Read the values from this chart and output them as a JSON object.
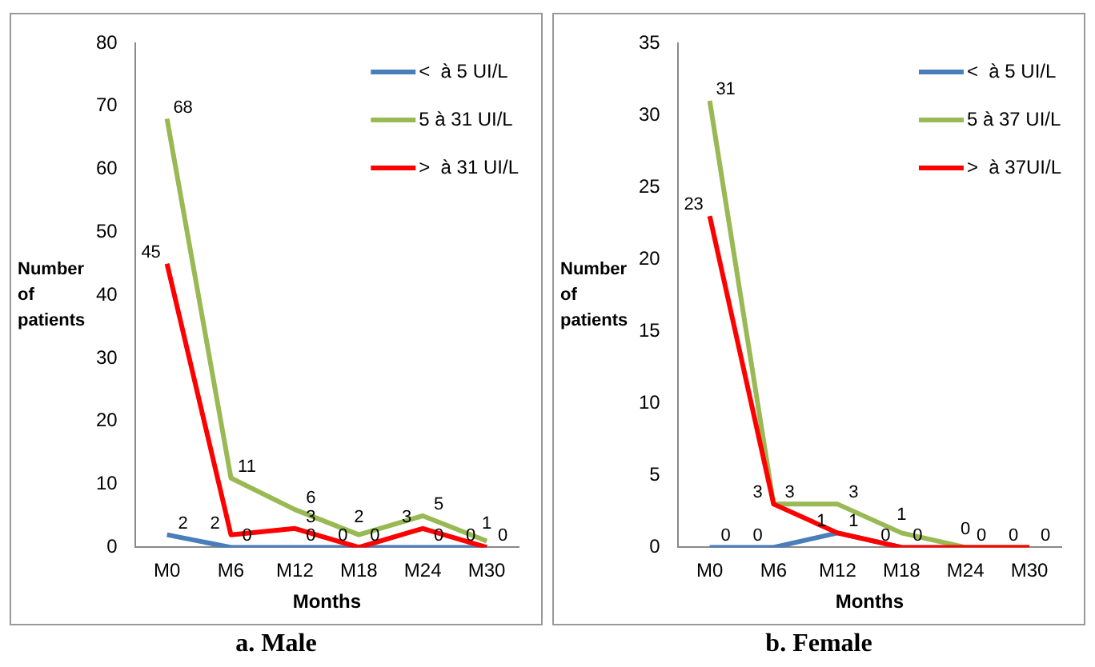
{
  "chart_data": [
    {
      "type": "line",
      "title": "a. Male",
      "xlabel": "Months",
      "ylabel": "Number of patients",
      "categories": [
        "M0",
        "M6",
        "M12",
        "M18",
        "M24",
        "M30"
      ],
      "ylim": [
        0,
        80
      ],
      "yticks": [
        0,
        10,
        20,
        30,
        40,
        50,
        60,
        70,
        80
      ],
      "grid": false,
      "legend": "top right",
      "marker": "none",
      "data_labels": true,
      "series": [
        {
          "name": "<  à 5 UI/L",
          "color": "#4a7ebb",
          "values": [
            2,
            0,
            0,
            0,
            0,
            0
          ]
        },
        {
          "name": "5 à 31 UI/L",
          "color": "#98b954",
          "values": [
            68,
            11,
            6,
            2,
            5,
            1
          ]
        },
        {
          "name": ">  à 31 UI/L",
          "color": "#ff0000",
          "values": [
            45,
            2,
            3,
            0,
            3,
            0
          ]
        }
      ]
    },
    {
      "type": "line",
      "title": "b. Female",
      "xlabel": "Months",
      "ylabel": "Number of patients",
      "categories": [
        "M0",
        "M6",
        "M12",
        "M18",
        "M24",
        "M30"
      ],
      "ylim": [
        0,
        35
      ],
      "yticks": [
        0,
        5,
        10,
        15,
        20,
        25,
        30,
        35
      ],
      "grid": false,
      "legend": "top right",
      "marker": "none",
      "data_labels": true,
      "series": [
        {
          "name": "<  à 5 UI/L",
          "color": "#4a7ebb",
          "values": [
            0,
            0,
            1,
            0,
            null,
            null
          ]
        },
        {
          "name": "5 à 37 UI/L",
          "color": "#98b954",
          "values": [
            31,
            3,
            3,
            1,
            0,
            0
          ]
        },
        {
          "name": ">  à 37UI/L",
          "color": "#ff0000",
          "values": [
            23,
            3,
            1,
            0,
            0,
            0
          ]
        }
      ]
    }
  ]
}
